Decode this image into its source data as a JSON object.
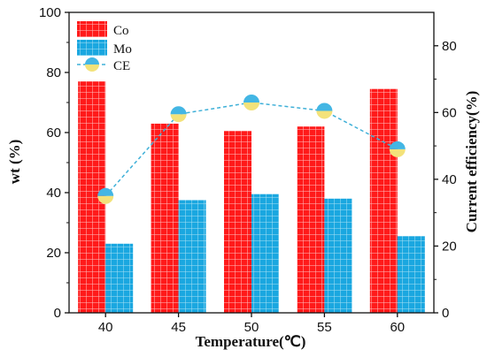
{
  "chart_data": {
    "type": "bar",
    "categories": [
      "40",
      "45",
      "50",
      "55",
      "60"
    ],
    "xlabel": "Temperature(℃)",
    "ylabel": "wt (%)",
    "y2label": "Current efficiency(%)",
    "ylim": [
      0,
      100
    ],
    "y2lim": [
      0,
      90
    ],
    "yticks": [
      "0",
      "20",
      "40",
      "60",
      "80",
      "100"
    ],
    "y2ticks": [
      "0",
      "20",
      "40",
      "60",
      "80"
    ],
    "legend_position": "top-left",
    "series": [
      {
        "name": "Co",
        "type": "bar",
        "axis": "left",
        "color": "#ff1a1a",
        "values": [
          77,
          63,
          60.5,
          62,
          74.5
        ]
      },
      {
        "name": "Mo",
        "type": "bar",
        "axis": "left",
        "color": "#1aa7e0",
        "values": [
          23,
          37.5,
          39.5,
          38,
          25.5
        ]
      },
      {
        "name": "CE",
        "type": "line",
        "axis": "right",
        "style": "dashed",
        "color": "#3fb0d8",
        "marker_colors": [
          "#f3e27a",
          "#43b6e4"
        ],
        "values": [
          35,
          59.5,
          63,
          60.5,
          49
        ]
      }
    ]
  }
}
